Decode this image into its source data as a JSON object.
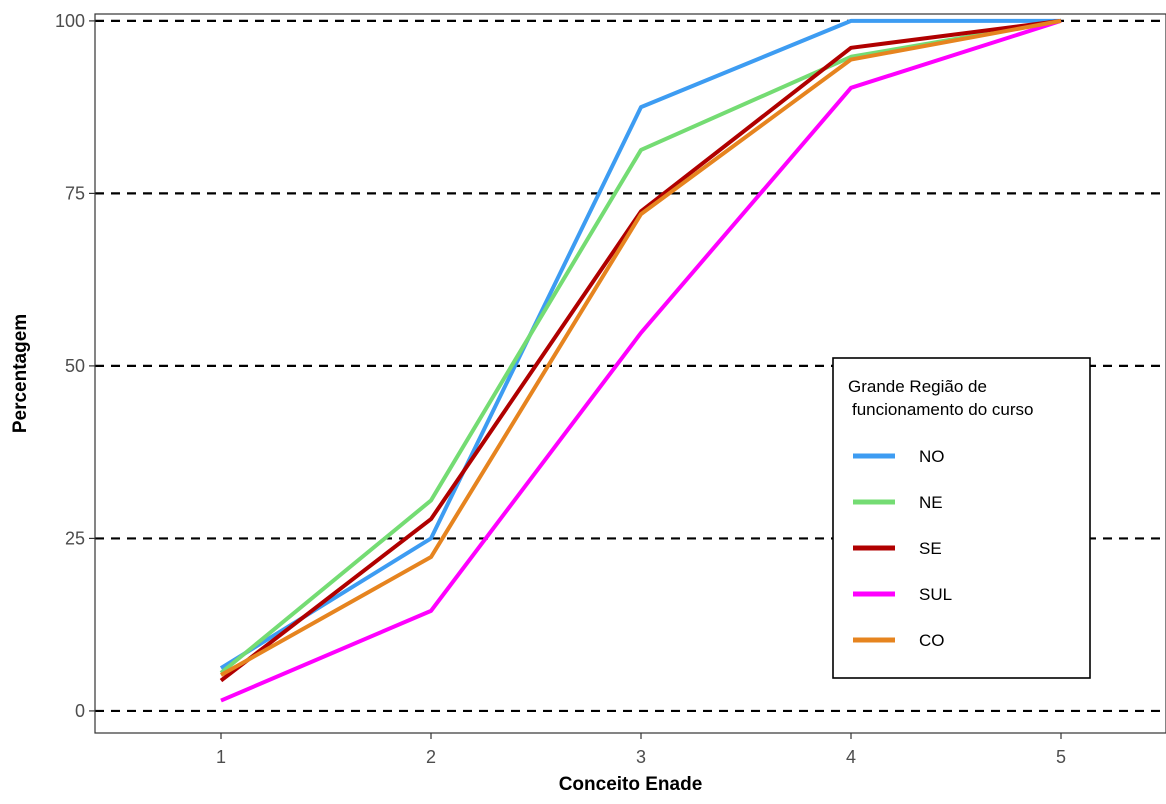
{
  "chart_data": {
    "type": "line",
    "title": "",
    "xlabel": "Conceito Enade",
    "ylabel": "Percentagem",
    "x": [
      1,
      2,
      3,
      4,
      5
    ],
    "xticks": [
      "1",
      "2",
      "3",
      "4",
      "5"
    ],
    "xlim": [
      0.4,
      5.5
    ],
    "ylim": [
      -3.2,
      101
    ],
    "yticks": [
      0,
      25,
      50,
      75,
      100
    ],
    "ytick_labels": [
      "0",
      "25",
      "50",
      "75",
      "100"
    ],
    "grid": "horizontal dashed",
    "legend": {
      "title_line1": "Grande Região de",
      "title_line2": "funcionamento do curso",
      "placement": "right"
    },
    "series": [
      {
        "name": "NO",
        "color": "#3d9cf2",
        "values": [
          6.2,
          25.0,
          87.5,
          100.0,
          100.0
        ]
      },
      {
        "name": "NE",
        "color": "#74dc73",
        "values": [
          5.5,
          30.5,
          81.3,
          94.8,
          100.0
        ]
      },
      {
        "name": "SE",
        "color": "#b00000",
        "values": [
          4.4,
          27.8,
          72.4,
          96.1,
          100.0
        ]
      },
      {
        "name": "SUL",
        "color": "#ff00ff",
        "values": [
          1.5,
          14.5,
          54.8,
          90.3,
          100.0
        ]
      },
      {
        "name": "CO",
        "color": "#e6841f",
        "values": [
          5.2,
          22.3,
          72.0,
          94.4,
          100.0
        ]
      }
    ]
  }
}
